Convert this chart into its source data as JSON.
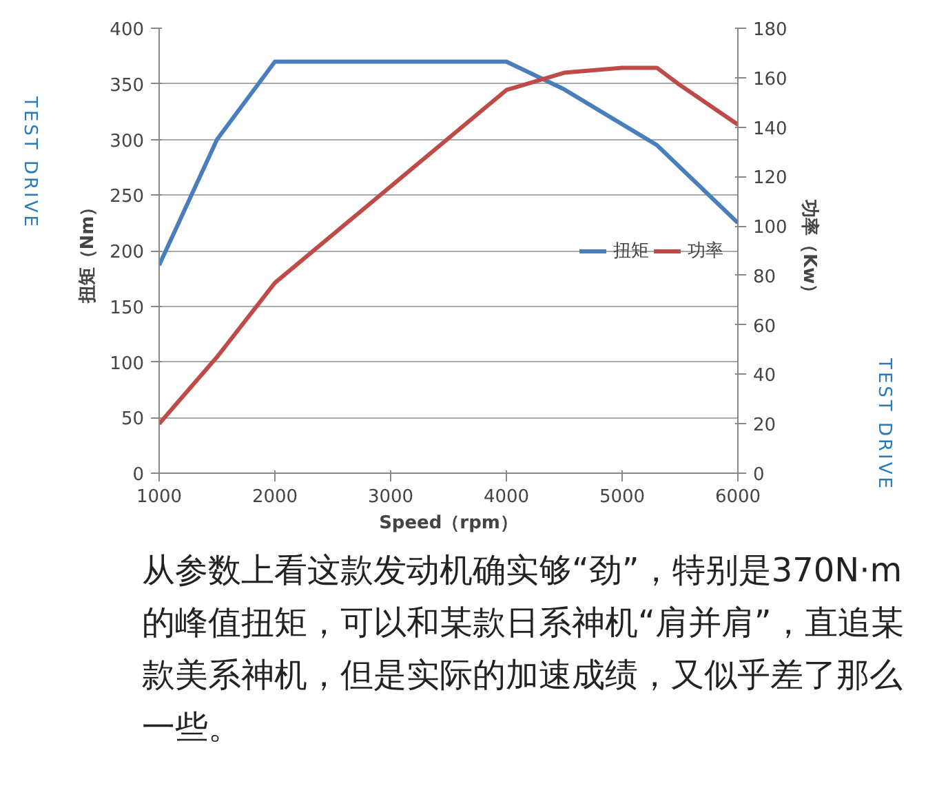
{
  "chart_data": {
    "type": "line",
    "xlabel": "Speed（rpm）",
    "ylabel": "扭矩（Nm）",
    "y2label": "功率（Kw）",
    "xlim": [
      1000,
      6000
    ],
    "xticks": [
      1000,
      2000,
      3000,
      4000,
      5000,
      6000
    ],
    "ylim": [
      0,
      400
    ],
    "yticks": [
      0,
      50,
      100,
      150,
      200,
      250,
      300,
      350,
      400
    ],
    "y2lim": [
      0,
      180
    ],
    "y2ticks": [
      0,
      20,
      40,
      60,
      80,
      100,
      120,
      140,
      160,
      180
    ],
    "grid": "y",
    "legend": "right",
    "marker": "none",
    "line_style": "solid",
    "series": [
      {
        "name": "扭矩",
        "color": "#4a7ebb",
        "x": [
          1000,
          1500,
          2000,
          4000,
          4500,
          5300,
          6000
        ],
        "values": [
          187,
          300,
          370,
          370,
          345,
          295,
          225
        ]
      },
      {
        "name": "功率",
        "color": "#be4b48",
        "axis": "y2",
        "x": [
          1000,
          1500,
          2000,
          4000,
          4500,
          5000,
          5300,
          5500,
          6000
        ],
        "values": [
          20,
          47,
          77,
          155,
          162,
          164,
          164,
          157,
          141
        ]
      }
    ],
    "annotations": [
      "TEST DRIVE",
      "TEST DRIVE",
      "从参数上看这款发动机确实够“劲”，特别是370N·m的峰值扭矩，可以和某款日系神机“肩并肩”，直追某款美系神机，但是实际的加速成绩，又似乎差了那么一些。"
    ]
  }
}
